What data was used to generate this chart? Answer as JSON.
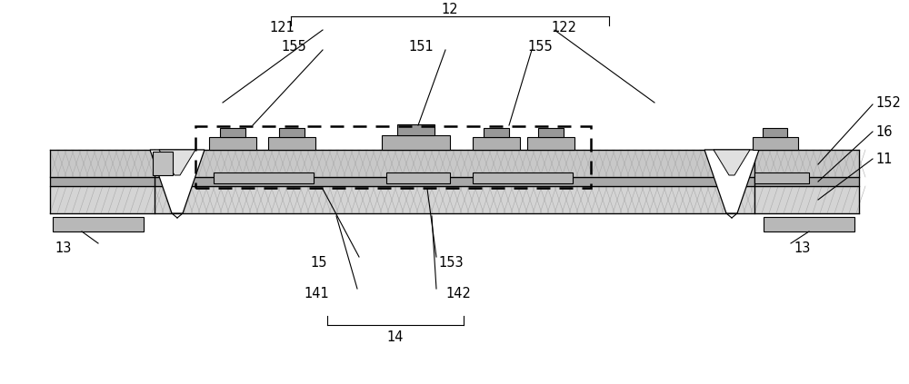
{
  "bg_color": "#ffffff",
  "c_substrate": "#d4d4d4",
  "c_mid_layer": "#a8a8a8",
  "c_top_layer": "#c8c8c8",
  "c_bump_base": "#b0b0b0",
  "c_bump_top": "#989898",
  "c_pad": "#b8b8b8",
  "c_hatch": "#c0c0c0",
  "figure_width": 10.0,
  "figure_height": 4.23
}
